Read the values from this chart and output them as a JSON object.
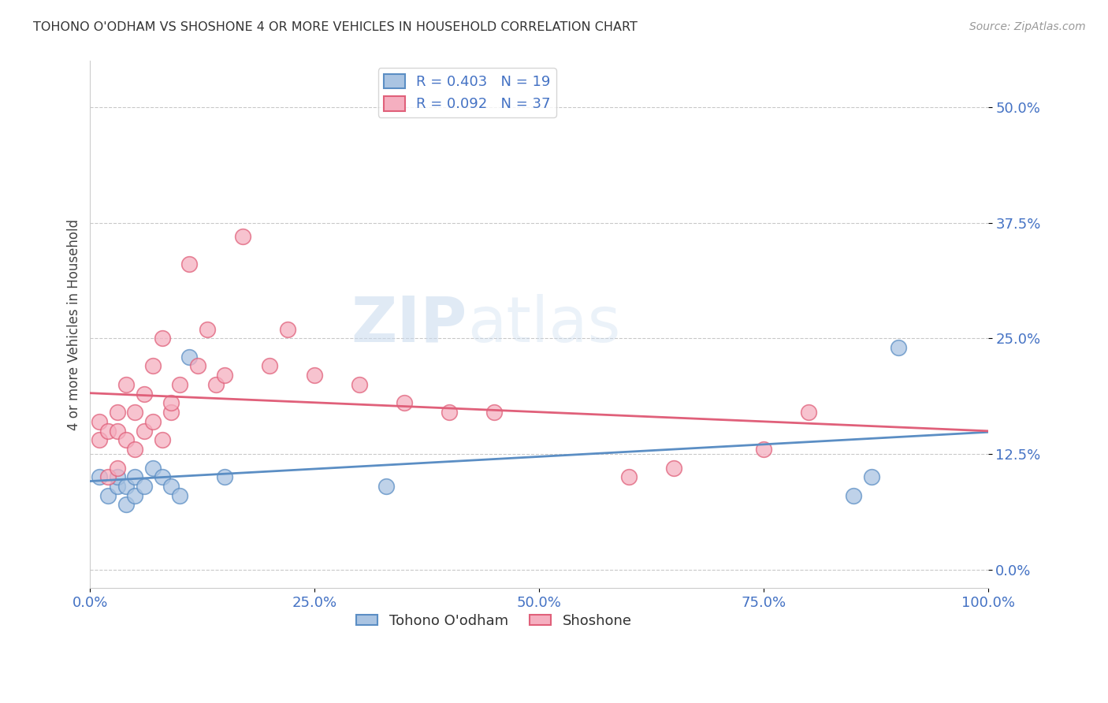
{
  "title": "TOHONO O'ODHAM VS SHOSHONE 4 OR MORE VEHICLES IN HOUSEHOLD CORRELATION CHART",
  "source": "Source: ZipAtlas.com",
  "ylabel": "4 or more Vehicles in Household",
  "xlim": [
    0,
    100
  ],
  "ylim": [
    -2,
    55
  ],
  "yticks": [
    0,
    12.5,
    25,
    37.5,
    50
  ],
  "xticks": [
    0,
    25,
    50,
    75,
    100
  ],
  "xtick_labels": [
    "0.0%",
    "25.0%",
    "50.0%",
    "75.0%",
    "100.0%"
  ],
  "ytick_labels": [
    "0.0%",
    "12.5%",
    "25.0%",
    "37.5%",
    "50.0%"
  ],
  "tohono_R": 0.403,
  "tohono_N": 19,
  "shoshone_R": 0.092,
  "shoshone_N": 37,
  "tohono_color": "#aac4e2",
  "shoshone_color": "#f5afc0",
  "tohono_line_color": "#5b8ec4",
  "shoshone_line_color": "#e0607a",
  "legend_text_color": "#4472c4",
  "background_color": "#ffffff",
  "tohono_x": [
    1,
    2,
    3,
    3,
    4,
    4,
    5,
    5,
    6,
    7,
    8,
    9,
    10,
    11,
    15,
    33,
    85,
    87,
    90
  ],
  "tohono_y": [
    10,
    8,
    9,
    10,
    7,
    9,
    8,
    10,
    9,
    11,
    10,
    9,
    8,
    23,
    10,
    9,
    8,
    10,
    24
  ],
  "shoshone_x": [
    1,
    1,
    2,
    2,
    3,
    3,
    3,
    4,
    4,
    5,
    5,
    6,
    6,
    7,
    7,
    8,
    8,
    9,
    9,
    10,
    11,
    12,
    13,
    14,
    15,
    17,
    20,
    22,
    25,
    30,
    35,
    40,
    45,
    60,
    65,
    75,
    80
  ],
  "shoshone_y": [
    14,
    16,
    10,
    15,
    11,
    15,
    17,
    14,
    20,
    13,
    17,
    15,
    19,
    22,
    16,
    25,
    14,
    17,
    18,
    20,
    33,
    22,
    26,
    20,
    21,
    36,
    22,
    26,
    21,
    20,
    18,
    17,
    17,
    10,
    11,
    13,
    17
  ]
}
